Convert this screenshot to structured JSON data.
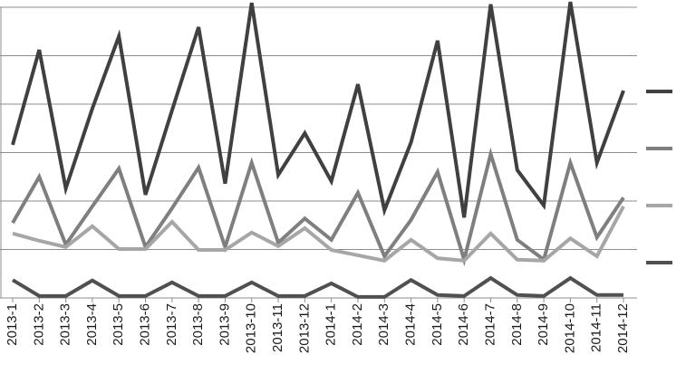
{
  "chart_data": {
    "type": "line",
    "categories": [
      "2013-1",
      "2013-2",
      "2013-3",
      "2013-4",
      "2013-5",
      "2013-6",
      "2013-7",
      "2013-8",
      "2013-9",
      "2013-10",
      "2013-11",
      "2013-12",
      "2014-1",
      "2014-2",
      "2014-3",
      "2014-4",
      "2014-5",
      "2014-6",
      "2014-7",
      "2014-8",
      "2014-9",
      "2014-10",
      "2014-11",
      "2014-12"
    ],
    "series": [
      {
        "color": "#404040",
        "values": [
          3.16,
          5.12,
          2.26,
          3.91,
          5.4,
          2.13,
          3.87,
          5.59,
          2.36,
          6.09,
          2.54,
          3.4,
          2.41,
          4.41,
          1.81,
          3.21,
          5.31,
          1.66,
          6.06,
          2.64,
          1.91,
          6.11,
          2.79,
          4.28
        ]
      },
      {
        "color": "#7f7f7f",
        "values": [
          1.55,
          2.5,
          1.1,
          1.89,
          2.67,
          1.05,
          1.85,
          2.69,
          1.05,
          2.79,
          1.14,
          1.64,
          1.2,
          2.17,
          0.86,
          1.61,
          2.6,
          0.79,
          2.97,
          1.2,
          0.79,
          2.79,
          1.25,
          2.07
        ]
      },
      {
        "color": "#a6a6a6",
        "values": [
          1.33,
          1.18,
          1.05,
          1.48,
          1.01,
          1.01,
          1.57,
          0.99,
          0.99,
          1.35,
          1.07,
          1.44,
          0.99,
          0.88,
          0.77,
          1.2,
          0.82,
          0.77,
          1.33,
          0.79,
          0.77,
          1.23,
          0.86,
          1.89
        ]
      },
      {
        "color": "#505050",
        "values": [
          0.37,
          0.04,
          0.04,
          0.36,
          0.04,
          0.04,
          0.32,
          0.04,
          0.04,
          0.32,
          0.04,
          0.04,
          0.3,
          0.02,
          0.02,
          0.37,
          0.06,
          0.04,
          0.41,
          0.06,
          0.04,
          0.41,
          0.06,
          0.06
        ]
      }
    ],
    "ylim": [
      0,
      6
    ],
    "yticks": [
      0,
      1,
      2,
      3,
      4,
      5,
      6
    ],
    "grid": true
  }
}
